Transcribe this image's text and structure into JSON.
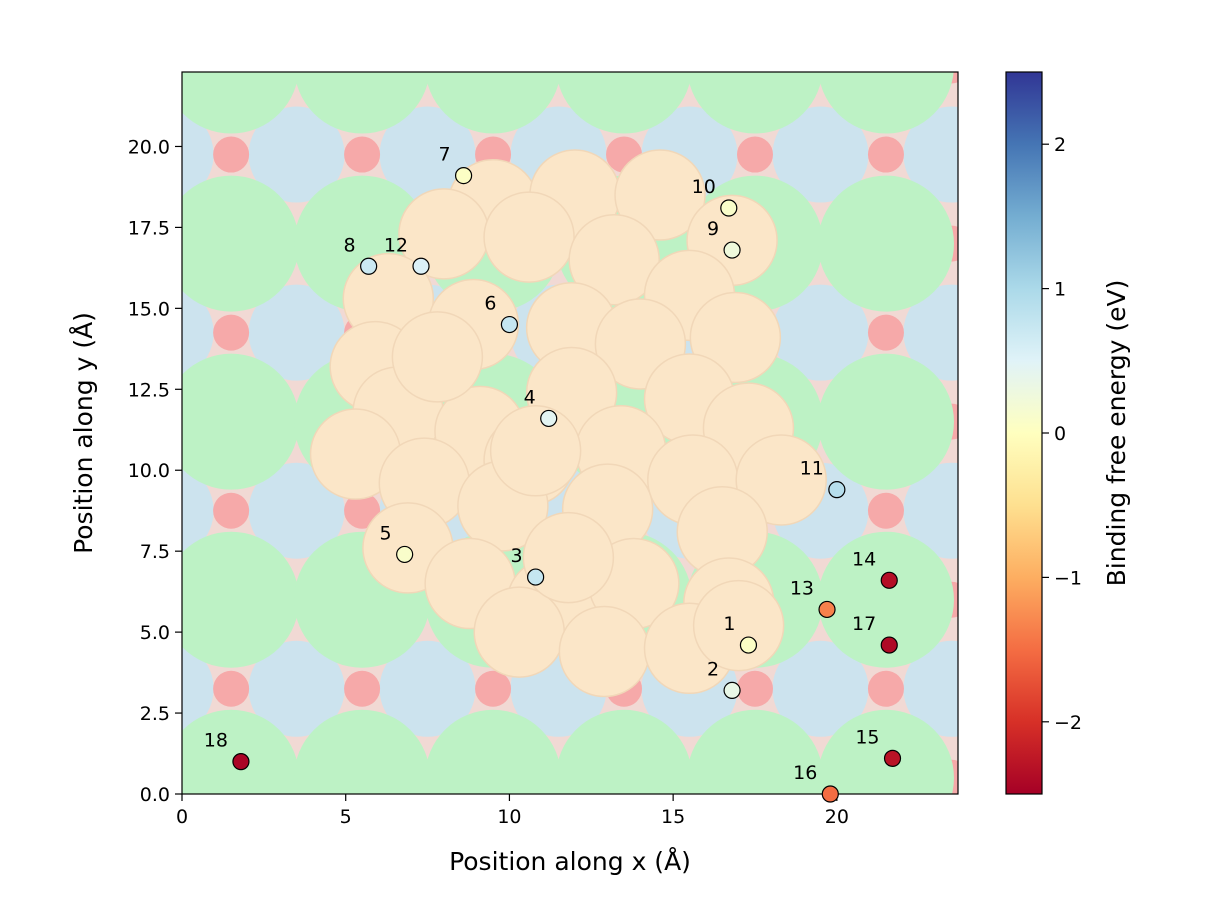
{
  "chart_data": {
    "type": "scatter",
    "xlabel": "Position along x (Å)",
    "ylabel": "Position along y (Å)",
    "xlim": [
      0,
      23.7
    ],
    "ylim": [
      0,
      22.3
    ],
    "xticks": [
      "0",
      "5",
      "10",
      "15",
      "20"
    ],
    "yticks": [
      "0.0",
      "2.5",
      "5.0",
      "7.5",
      "10.0",
      "12.5",
      "15.0",
      "17.5",
      "20.0"
    ],
    "colorbar": {
      "label": "Binding free energy (eV)",
      "range": [
        -2.5,
        2.5
      ],
      "colormap": "RdYlBu",
      "ticks": [
        "−2",
        "−1",
        "0",
        "1",
        "2"
      ]
    },
    "points": [
      {
        "label": "1",
        "x": 17.3,
        "y": 4.6,
        "energy": 0.05
      },
      {
        "label": "2",
        "x": 16.8,
        "y": 3.2,
        "energy": 0.35
      },
      {
        "label": "3",
        "x": 10.8,
        "y": 6.7,
        "energy": 0.75
      },
      {
        "label": "4",
        "x": 11.2,
        "y": 11.6,
        "energy": 0.45
      },
      {
        "label": "5",
        "x": 6.8,
        "y": 7.4,
        "energy": 0.1
      },
      {
        "label": "6",
        "x": 10.0,
        "y": 14.5,
        "energy": 0.75
      },
      {
        "label": "7",
        "x": 8.6,
        "y": 19.1,
        "energy": 0.05
      },
      {
        "label": "8",
        "x": 5.7,
        "y": 16.3,
        "energy": 0.7
      },
      {
        "label": "9",
        "x": 16.8,
        "y": 16.8,
        "energy": 0.25
      },
      {
        "label": "10",
        "x": 16.7,
        "y": 18.1,
        "energy": 0.1
      },
      {
        "label": "11",
        "x": 20.0,
        "y": 9.4,
        "energy": 0.9
      },
      {
        "label": "12",
        "x": 7.3,
        "y": 16.3,
        "energy": 0.55
      },
      {
        "label": "13",
        "x": 19.7,
        "y": 5.7,
        "energy": -1.35
      },
      {
        "label": "14",
        "x": 21.6,
        "y": 6.6,
        "energy": -2.35
      },
      {
        "label": "15",
        "x": 21.7,
        "y": 1.1,
        "energy": -2.3
      },
      {
        "label": "16",
        "x": 19.8,
        "y": 0.0,
        "energy": -1.5
      },
      {
        "label": "17",
        "x": 21.6,
        "y": 4.6,
        "energy": -2.4
      },
      {
        "label": "18",
        "x": 1.8,
        "y": 1.0,
        "energy": -2.45
      }
    ]
  }
}
